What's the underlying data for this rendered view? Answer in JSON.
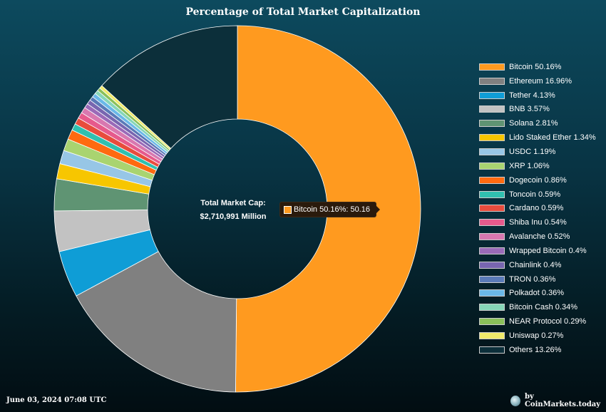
{
  "title": "Percentage of Total Market Capitalization",
  "center": {
    "label": "Total Market Cap:",
    "value": "$2,710,991 Million"
  },
  "tooltip": {
    "text": "Bitcoin 50.16%: 50.16",
    "color": "#ff9a1f"
  },
  "footer": {
    "date": "June 03, 2024 07:08 UTC",
    "credit": "by CoinMarkets.today"
  },
  "chart_data": {
    "type": "pie",
    "donut": true,
    "title": "Percentage of Total Market Capitalization",
    "legend_position": "right",
    "categories": [
      "Bitcoin",
      "Ethereum",
      "Tether",
      "BNB",
      "Solana",
      "Lido Staked Ether",
      "USDC",
      "XRP",
      "Dogecoin",
      "Toncoin",
      "Cardano",
      "Shiba Inu",
      "Avalanche",
      "Wrapped Bitcoin",
      "Chainlink",
      "TRON",
      "Polkadot",
      "Bitcoin Cash",
      "NEAR Protocol",
      "Uniswap",
      "Others"
    ],
    "values": [
      50.16,
      16.96,
      4.13,
      3.57,
      2.81,
      1.34,
      1.19,
      1.06,
      0.86,
      0.59,
      0.59,
      0.54,
      0.52,
      0.4,
      0.4,
      0.36,
      0.36,
      0.34,
      0.29,
      0.27,
      13.26
    ],
    "legend_labels": [
      "Bitcoin 50.16%",
      "Ethereum 16.96%",
      "Tether 4.13%",
      "BNB 3.57%",
      "Solana 2.81%",
      "Lido Staked Ether 1.34%",
      "USDC 1.19%",
      "XRP 1.06%",
      "Dogecoin 0.86%",
      "Toncoin 0.59%",
      "Cardano 0.59%",
      "Shiba Inu 0.54%",
      "Avalanche 0.52%",
      "Wrapped Bitcoin 0.4%",
      "Chainlink 0.4%",
      "TRON 0.36%",
      "Polkadot 0.36%",
      "Bitcoin Cash 0.34%",
      "NEAR Protocol 0.29%",
      "Uniswap 0.27%",
      "Others 13.26%"
    ],
    "colors": [
      "#ff9a1f",
      "#808080",
      "#0f9dd6",
      "#c2c2c2",
      "#5f9473",
      "#f7c600",
      "#97c6e6",
      "#a9d470",
      "#ff6a10",
      "#30c0b0",
      "#e84c3d",
      "#e65a8c",
      "#d878b0",
      "#9a6ab8",
      "#7866b0",
      "#5a7ab8",
      "#6ab8e8",
      "#86d6b8",
      "#8ac05a",
      "#f0ea6a",
      "#0c2f3a"
    ]
  }
}
